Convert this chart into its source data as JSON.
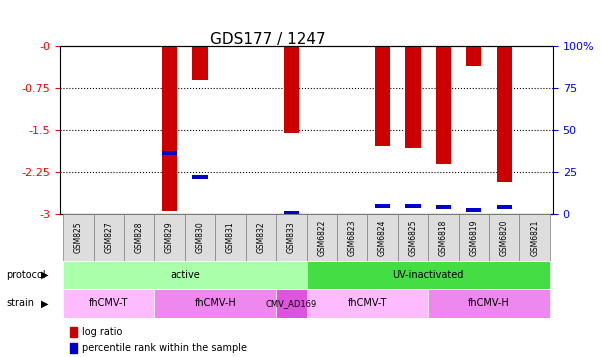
{
  "title": "GDS177 / 1247",
  "samples": [
    "GSM825",
    "GSM827",
    "GSM828",
    "GSM829",
    "GSM830",
    "GSM831",
    "GSM832",
    "GSM833",
    "GSM6822",
    "GSM6823",
    "GSM6824",
    "GSM6825",
    "GSM6818",
    "GSM6819",
    "GSM6820",
    "GSM6821"
  ],
  "log_ratio": [
    0,
    0,
    0,
    -2.95,
    -0.6,
    0,
    0,
    -1.55,
    0,
    0,
    -1.78,
    -1.82,
    -2.1,
    -0.35,
    -2.42,
    0
  ],
  "percentile": [
    0,
    0,
    0,
    -1.9,
    -2.33,
    0,
    0,
    -2.97,
    0,
    0,
    -2.85,
    -2.85,
    -2.87,
    -2.93,
    -2.87,
    0
  ],
  "ylim": [
    -3,
    0
  ],
  "yticks": [
    0,
    -0.75,
    -1.5,
    -2.25,
    -3
  ],
  "right_yticks": [
    100,
    75,
    50,
    25,
    0
  ],
  "protocol_groups": [
    {
      "label": "active",
      "start": 0,
      "end": 8,
      "color": "#aaffaa"
    },
    {
      "label": "UV-inactivated",
      "start": 8,
      "end": 16,
      "color": "#44dd44"
    }
  ],
  "strain_groups": [
    {
      "label": "fhCMV-T",
      "start": 0,
      "end": 3,
      "color": "#ffaaff"
    },
    {
      "label": "fhCMV-H",
      "start": 3,
      "end": 7,
      "color": "#ee88ee"
    },
    {
      "label": "CMV_AD169",
      "start": 7,
      "end": 8,
      "color": "#dd66dd"
    },
    {
      "label": "fhCMV-T",
      "start": 8,
      "end": 12,
      "color": "#ffaaff"
    },
    {
      "label": "fhCMV-H",
      "start": 12,
      "end": 16,
      "color": "#ee88ee"
    }
  ],
  "bar_color": "#cc0000",
  "percentile_color": "#0000cc",
  "bar_width": 0.5,
  "legend_items": [
    {
      "label": "log ratio",
      "color": "#cc0000"
    },
    {
      "label": "percentile rank within the sample",
      "color": "#0000cc"
    }
  ]
}
